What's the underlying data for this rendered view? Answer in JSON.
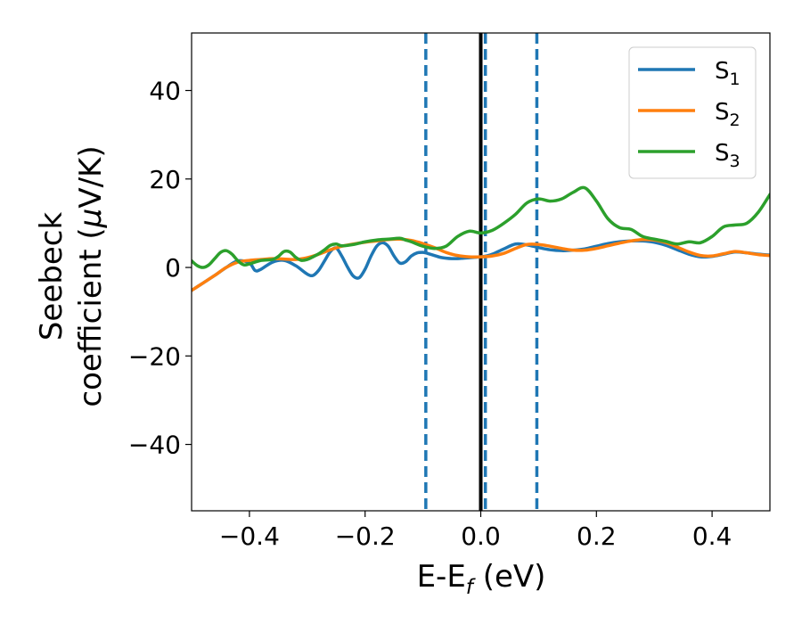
{
  "chart_data": {
    "type": "line",
    "xlabel": "E-E",
    "xlabel_sub": "f",
    "xlabel_unit": " (eV)",
    "ylabel_line1": "Seebeck",
    "ylabel_line2": "coefficient  (",
    "ylabel_mu": "μ",
    "ylabel_unit": "V/K)",
    "xlim": [
      -0.5,
      0.5
    ],
    "ylim": [
      -55,
      53
    ],
    "xticks": [
      -0.4,
      -0.2,
      0.0,
      0.2,
      0.4
    ],
    "xtick_labels": [
      "−0.4",
      "−0.2",
      "0.0",
      "0.2",
      "0.4"
    ],
    "yticks": [
      -40,
      -20,
      0,
      20,
      40
    ],
    "ytick_labels": [
      "−40",
      "−20",
      "0",
      "20",
      "40"
    ],
    "legend_position": "top-right",
    "vlines": [
      {
        "x": -0.095,
        "style": "dashed",
        "color": "#1f77b4"
      },
      {
        "x": 0.0,
        "style": "solid",
        "color": "#000000"
      },
      {
        "x": 0.008,
        "style": "dashed",
        "color": "#1f77b4"
      },
      {
        "x": 0.097,
        "style": "dashed",
        "color": "#1f77b4"
      }
    ],
    "series": [
      {
        "name": "S",
        "sub": "1",
        "color": "#1f77b4",
        "x": [
          -0.5,
          -0.48,
          -0.46,
          -0.44,
          -0.42,
          -0.4,
          -0.39,
          -0.38,
          -0.36,
          -0.34,
          -0.32,
          -0.3,
          -0.29,
          -0.28,
          -0.27,
          -0.26,
          -0.25,
          -0.24,
          -0.23,
          -0.22,
          -0.21,
          -0.2,
          -0.19,
          -0.18,
          -0.17,
          -0.16,
          -0.15,
          -0.14,
          -0.13,
          -0.12,
          -0.11,
          -0.1,
          -0.095,
          -0.09,
          -0.08,
          -0.07,
          -0.06,
          -0.05,
          -0.04,
          -0.03,
          -0.02,
          -0.01,
          0.0,
          0.01,
          0.02,
          0.04,
          0.06,
          0.08,
          0.1,
          0.12,
          0.14,
          0.16,
          0.18,
          0.2,
          0.22,
          0.24,
          0.26,
          0.28,
          0.3,
          0.32,
          0.34,
          0.36,
          0.38,
          0.4,
          0.42,
          0.44,
          0.46,
          0.48,
          0.5
        ],
        "y": [
          -5.2,
          -3.5,
          -1.8,
          0.0,
          1.5,
          1.0,
          -0.7,
          -0.4,
          1.2,
          1.6,
          0.4,
          -1.5,
          -1.8,
          -0.6,
          1.5,
          3.6,
          4.4,
          2.5,
          0.0,
          -2.0,
          -2.3,
          -0.4,
          2.5,
          4.8,
          5.6,
          4.8,
          2.6,
          1.0,
          1.3,
          2.6,
          3.3,
          3.4,
          3.3,
          3.1,
          2.7,
          2.3,
          2.1,
          2.0,
          2.0,
          2.1,
          2.2,
          2.3,
          2.4,
          2.6,
          3.0,
          4.2,
          5.3,
          5.1,
          4.5,
          4.0,
          3.8,
          3.9,
          4.2,
          4.8,
          5.4,
          5.8,
          6.0,
          6.0,
          5.7,
          5.0,
          4.0,
          3.0,
          2.4,
          2.5,
          3.0,
          3.5,
          3.3,
          3.0,
          2.8
        ]
      },
      {
        "name": "S",
        "sub": "2",
        "color": "#ff7f0e",
        "x": [
          -0.5,
          -0.48,
          -0.46,
          -0.44,
          -0.42,
          -0.4,
          -0.38,
          -0.36,
          -0.34,
          -0.32,
          -0.3,
          -0.28,
          -0.26,
          -0.24,
          -0.22,
          -0.2,
          -0.18,
          -0.16,
          -0.14,
          -0.12,
          -0.1,
          -0.08,
          -0.06,
          -0.04,
          -0.02,
          0.0,
          0.02,
          0.04,
          0.06,
          0.08,
          0.1,
          0.12,
          0.14,
          0.16,
          0.18,
          0.2,
          0.22,
          0.24,
          0.26,
          0.28,
          0.3,
          0.32,
          0.34,
          0.36,
          0.38,
          0.4,
          0.42,
          0.44,
          0.46,
          0.48,
          0.5
        ],
        "y": [
          -5.2,
          -3.5,
          -1.8,
          0.0,
          1.2,
          1.6,
          1.8,
          2.0,
          1.9,
          1.8,
          2.2,
          3.0,
          4.0,
          4.8,
          5.3,
          5.7,
          6.0,
          6.3,
          6.4,
          6.1,
          5.4,
          4.5,
          3.4,
          2.7,
          2.4,
          2.4,
          2.6,
          3.2,
          4.3,
          5.2,
          5.2,
          4.8,
          4.3,
          3.9,
          3.9,
          4.3,
          4.9,
          5.5,
          6.0,
          6.3,
          6.2,
          5.6,
          4.6,
          3.5,
          2.7,
          2.6,
          3.1,
          3.6,
          3.3,
          2.9,
          2.7
        ]
      },
      {
        "name": "S",
        "sub": "3",
        "color": "#2ca02c",
        "x": [
          -0.5,
          -0.49,
          -0.48,
          -0.47,
          -0.46,
          -0.45,
          -0.44,
          -0.43,
          -0.42,
          -0.41,
          -0.4,
          -0.38,
          -0.36,
          -0.35,
          -0.34,
          -0.33,
          -0.32,
          -0.31,
          -0.3,
          -0.29,
          -0.28,
          -0.27,
          -0.26,
          -0.25,
          -0.24,
          -0.22,
          -0.2,
          -0.18,
          -0.16,
          -0.14,
          -0.13,
          -0.12,
          -0.1,
          -0.08,
          -0.06,
          -0.04,
          -0.02,
          0.0,
          0.02,
          0.04,
          0.06,
          0.08,
          0.1,
          0.12,
          0.14,
          0.16,
          0.18,
          0.2,
          0.22,
          0.24,
          0.26,
          0.28,
          0.3,
          0.32,
          0.34,
          0.36,
          0.38,
          0.4,
          0.42,
          0.44,
          0.46,
          0.48,
          0.5
        ],
        "y": [
          1.5,
          0.4,
          0.0,
          0.6,
          2.0,
          3.4,
          3.8,
          3.0,
          1.5,
          0.6,
          0.8,
          1.6,
          1.8,
          2.5,
          3.6,
          3.5,
          2.3,
          1.6,
          1.8,
          2.4,
          3.1,
          4.0,
          5.0,
          5.3,
          4.9,
          5.2,
          5.8,
          6.2,
          6.4,
          6.6,
          6.2,
          5.8,
          4.8,
          4.3,
          4.8,
          7.0,
          8.2,
          7.8,
          8.4,
          10.0,
          12.0,
          14.6,
          15.5,
          15.0,
          15.5,
          17.0,
          18.0,
          15.0,
          11.0,
          9.0,
          8.6,
          7.0,
          6.4,
          5.9,
          5.3,
          5.8,
          5.6,
          7.0,
          9.2,
          9.6,
          10.0,
          12.5,
          16.5
        ]
      }
    ]
  }
}
